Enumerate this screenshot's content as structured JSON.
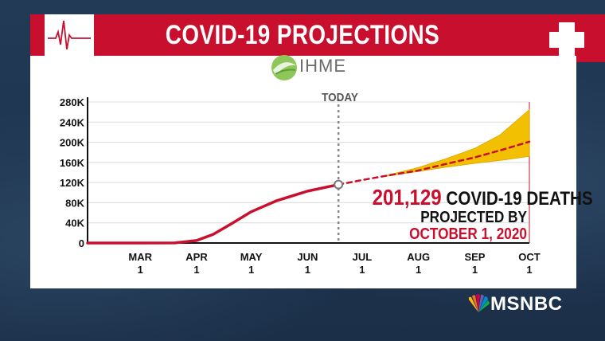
{
  "header": {
    "title": "COVID-19 PROJECTIONS",
    "accent_color": "#c8102e",
    "icon": "heartbeat-pulse-icon"
  },
  "logo": {
    "text": "IHME",
    "icon": "ihme-leaf-icon"
  },
  "network": {
    "name": "MSNBC",
    "icon": "nbc-peacock-icon"
  },
  "callout": {
    "number": "201,129",
    "line1_rest": "COVID-19 DEATHS",
    "line2": "PROJECTED BY",
    "line3": "OCTOBER 1, 2020"
  },
  "chart_data": {
    "type": "line",
    "title": "",
    "xlabel": "",
    "ylabel": "",
    "today_label": "TODAY",
    "x_ticks": [
      {
        "month": "MAR",
        "day": "1",
        "date": "2020-03-01"
      },
      {
        "month": "APR",
        "day": "1",
        "date": "2020-04-01"
      },
      {
        "month": "MAY",
        "day": "1",
        "date": "2020-05-01"
      },
      {
        "month": "JUN",
        "day": "1",
        "date": "2020-06-01"
      },
      {
        "month": "JUL",
        "day": "1",
        "date": "2020-07-01"
      },
      {
        "month": "AUG",
        "day": "1",
        "date": "2020-08-01"
      },
      {
        "month": "SEP",
        "day": "1",
        "date": "2020-09-01"
      },
      {
        "month": "OCT",
        "day": "1",
        "date": "2020-10-01"
      }
    ],
    "x_range": [
      "2020-02-01",
      "2020-10-01"
    ],
    "y_ticks": [
      {
        "value": 0,
        "label": "0"
      },
      {
        "value": 40000,
        "label": "40K"
      },
      {
        "value": 80000,
        "label": "80K"
      },
      {
        "value": 120000,
        "label": "120K"
      },
      {
        "value": 160000,
        "label": "160K"
      },
      {
        "value": 200000,
        "label": "200K"
      },
      {
        "value": 240000,
        "label": "240K"
      },
      {
        "value": 280000,
        "label": "280K"
      }
    ],
    "ylim": [
      0,
      280000
    ],
    "grid": true,
    "today_date": "2020-06-18",
    "series": [
      {
        "kind": "actual",
        "color": "#c8102e",
        "points": [
          [
            "2020-02-01",
            0
          ],
          [
            "2020-03-01",
            0
          ],
          [
            "2020-03-20",
            200
          ],
          [
            "2020-04-01",
            5000
          ],
          [
            "2020-04-10",
            17000
          ],
          [
            "2020-04-20",
            38000
          ],
          [
            "2020-05-01",
            62000
          ],
          [
            "2020-05-15",
            84000
          ],
          [
            "2020-06-01",
            103000
          ],
          [
            "2020-06-18",
            116000
          ]
        ]
      },
      {
        "kind": "projected",
        "color": "#c8102e",
        "points": [
          [
            "2020-06-18",
            116000
          ],
          [
            "2020-07-01",
            125000
          ],
          [
            "2020-07-15",
            134000
          ],
          [
            "2020-08-01",
            144000
          ],
          [
            "2020-08-15",
            156000
          ],
          [
            "2020-09-01",
            170000
          ],
          [
            "2020-09-15",
            184000
          ],
          [
            "2020-10-01",
            201129
          ]
        ]
      }
    ],
    "uncertainty_band": {
      "color": "#f2c000",
      "upper": [
        [
          "2020-07-15",
          135000
        ],
        [
          "2020-08-01",
          150000
        ],
        [
          "2020-08-15",
          166000
        ],
        [
          "2020-09-01",
          188000
        ],
        [
          "2020-09-15",
          215000
        ],
        [
          "2020-10-01",
          265000
        ]
      ],
      "lower": [
        [
          "2020-07-15",
          133000
        ],
        [
          "2020-08-01",
          142000
        ],
        [
          "2020-08-15",
          150000
        ],
        [
          "2020-09-01",
          158000
        ],
        [
          "2020-09-15",
          164000
        ],
        [
          "2020-10-01",
          172000
        ]
      ]
    }
  }
}
